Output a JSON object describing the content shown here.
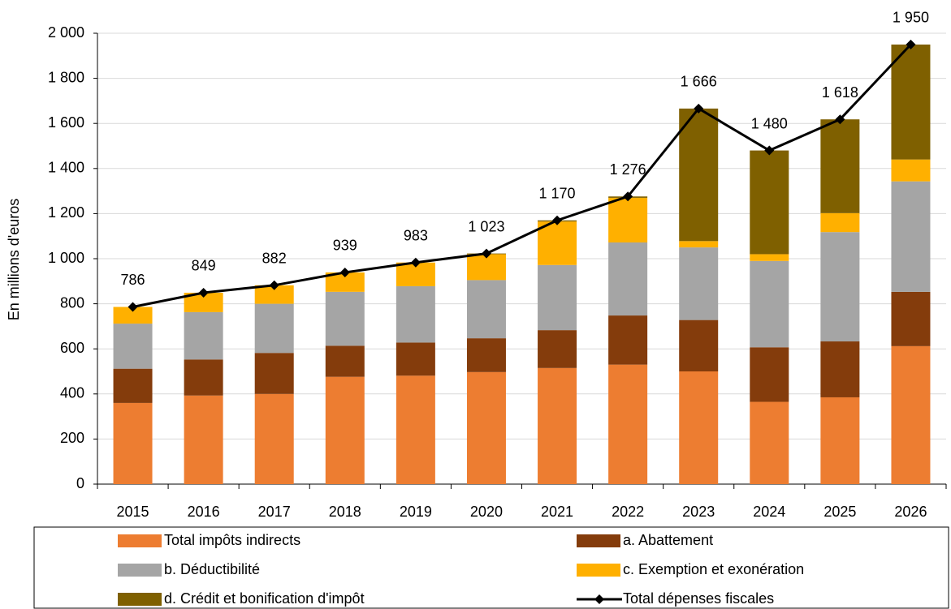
{
  "chart_data": {
    "type": "bar",
    "stacked": true,
    "y_label": "En millions d'euros",
    "categories": [
      "2015",
      "2016",
      "2017",
      "2018",
      "2019",
      "2020",
      "2021",
      "2022",
      "2023",
      "2024",
      "2025",
      "2026"
    ],
    "ylim": [
      0,
      2000
    ],
    "yticks": [
      0,
      200,
      400,
      600,
      800,
      {
        "value": 1000,
        "label": "1 000"
      },
      {
        "value": 1200,
        "label": "1 200"
      },
      {
        "value": 1400,
        "label": "1 400"
      },
      {
        "value": 1600,
        "label": "1 600"
      },
      {
        "value": 1800,
        "label": "1 800"
      },
      {
        "value": 2000,
        "label": "2 000"
      }
    ],
    "grid": true,
    "series": [
      {
        "name": "Total impôts indirects",
        "color": "#ED7D31",
        "values": [
          360,
          393,
          400,
          476,
          481,
          497,
          515,
          530,
          500,
          365,
          385,
          612
        ]
      },
      {
        "name": "a. Abattement",
        "color": "#843C0C",
        "values": [
          152,
          160,
          182,
          138,
          147,
          150,
          168,
          218,
          228,
          242,
          248,
          241
        ]
      },
      {
        "name": "b. Déductibilité",
        "color": "#A5A5A5",
        "values": [
          200,
          210,
          218,
          239,
          250,
          258,
          289,
          324,
          322,
          383,
          485,
          490
        ]
      },
      {
        "name": "c. Exemption et exonération",
        "color": "#FFB000",
        "values": [
          74,
          86,
          82,
          86,
          105,
          115,
          193,
          198,
          28,
          30,
          84,
          97
        ]
      },
      {
        "name": "d. Crédit et bonification d'impôt",
        "color": "#7F6000",
        "values": [
          0,
          0,
          0,
          0,
          0,
          3,
          5,
          6,
          588,
          460,
          416,
          510
        ]
      },
      {
        "name": "Total dépenses fiscales",
        "color": "#000000",
        "type": "line",
        "values": [
          786,
          849,
          882,
          939,
          983,
          1023,
          1170,
          1276,
          1666,
          1480,
          1618,
          1950
        ],
        "value_labels": [
          "786",
          "849",
          "882",
          "939",
          "983",
          "1 023",
          "1 170",
          "1 276",
          "1 666",
          "1 480",
          "1 618",
          "1 950"
        ]
      }
    ]
  }
}
